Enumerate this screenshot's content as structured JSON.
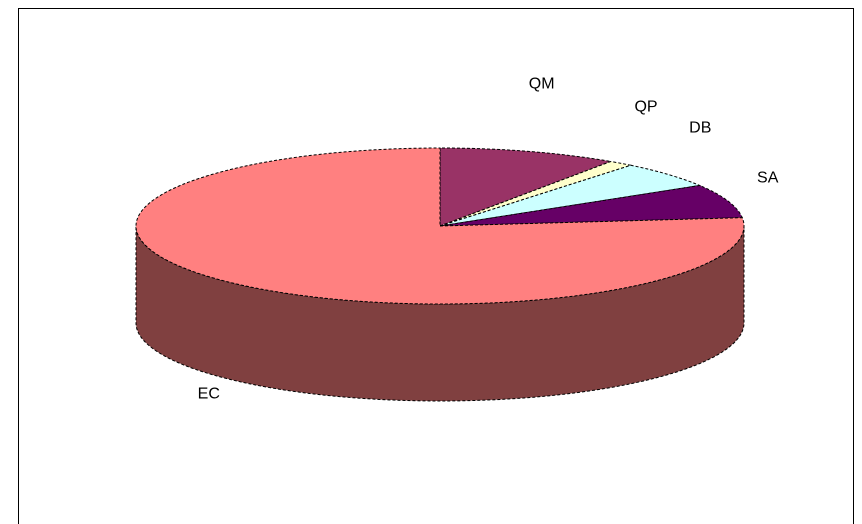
{
  "chart_data": {
    "type": "pie",
    "three_d": true,
    "title": "",
    "legend": "none",
    "slices": [
      {
        "label": "QM",
        "value": 9.5,
        "color": "#993366",
        "side_color": "#4d1a33"
      },
      {
        "label": "QP",
        "value": 1.3,
        "color": "#ffffcc",
        "side_color": "#808066"
      },
      {
        "label": "DB",
        "value": 5.5,
        "color": "#ccffff",
        "side_color": "#668080"
      },
      {
        "label": "SA",
        "value": 7.0,
        "color": "#660066",
        "side_color": "#330033"
      },
      {
        "label": "EC",
        "value": 76.7,
        "color": "#ff8080",
        "side_color": "#804040"
      }
    ]
  }
}
